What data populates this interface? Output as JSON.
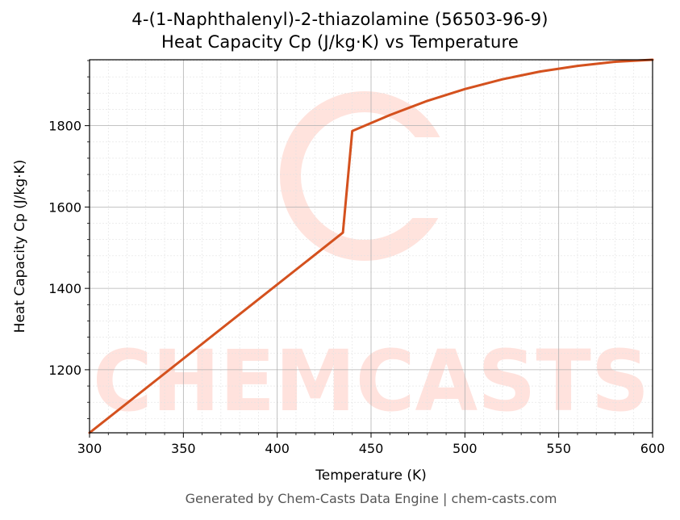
{
  "title_line1": "4-(1-Naphthalenyl)-2-thiazolamine (56503-96-9)",
  "title_line2": "Heat Capacity Cp (J/kg·K) vs Temperature",
  "footer": "Generated by Chem-Casts Data Engine | chem-casts.com",
  "watermark": {
    "text": "CHEMCASTS",
    "color": "#ffd9d2"
  },
  "chart_data": {
    "type": "line",
    "title": "4-(1-Naphthalenyl)-2-thiazolamine (56503-96-9)\nHeat Capacity Cp (J/kg·K) vs Temperature",
    "xlabel": "Temperature (K)",
    "ylabel": "Heat Capacity Cp (J/kg·K)",
    "xlim": [
      300,
      600
    ],
    "ylim": [
      1045,
      1962
    ],
    "xticks": [
      300,
      350,
      400,
      450,
      500,
      550,
      600
    ],
    "yticks": [
      1200,
      1400,
      1600,
      1800
    ],
    "grid": true,
    "line_color": "#d4511e",
    "series": [
      {
        "x": [
          300,
          435,
          440,
          460,
          480,
          500,
          520,
          540,
          560,
          580,
          600
        ],
        "y": [
          1045,
          1537,
          1787,
          1826,
          1861,
          1890,
          1914,
          1933,
          1947,
          1957,
          1962
        ]
      }
    ]
  }
}
